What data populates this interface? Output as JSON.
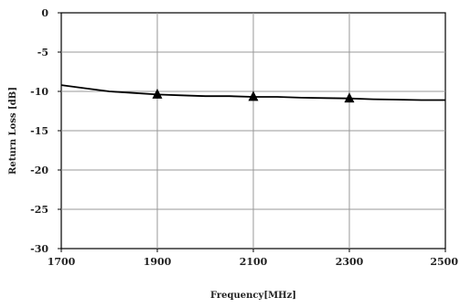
{
  "chart_data": {
    "type": "line",
    "title": "",
    "xlabel": "Frequency[MHz]",
    "ylabel": "Return Loss [dB]",
    "xlim": [
      1700,
      2500
    ],
    "ylim": [
      -30,
      0
    ],
    "x_ticks": [
      1700,
      1900,
      2100,
      2300,
      2500
    ],
    "y_ticks": [
      0,
      -5,
      -10,
      -15,
      -20,
      -25,
      -30
    ],
    "x_tick_labels": [
      "1700",
      "1900",
      "2100",
      "2300",
      "2500"
    ],
    "y_tick_labels": [
      "0",
      "-5",
      "-10",
      "-15",
      "-20",
      "-25",
      "-30"
    ],
    "grid": true,
    "legend": "none",
    "series": [
      {
        "x": [
          1700,
          1750,
          1800,
          1850,
          1900,
          1950,
          2000,
          2050,
          2100,
          2150,
          2200,
          2250,
          2300,
          2350,
          2400,
          2450,
          2500
        ],
        "y": [
          -9.2,
          -9.6,
          -10.0,
          -10.2,
          -10.4,
          -10.5,
          -10.6,
          -10.6,
          -10.7,
          -10.7,
          -10.8,
          -10.85,
          -10.9,
          -11.0,
          -11.05,
          -11.1,
          -11.1
        ],
        "color": "#000000",
        "markers": {
          "shape": "triangle",
          "x": [
            1900,
            2100,
            2300
          ],
          "y": [
            -10.4,
            -10.7,
            -10.9
          ]
        }
      }
    ]
  }
}
